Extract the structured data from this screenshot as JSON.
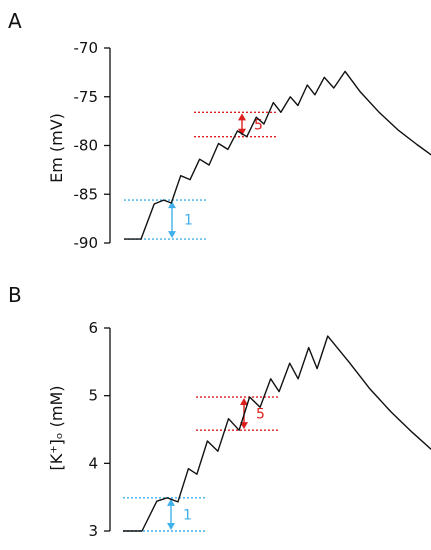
{
  "chart_data": [
    {
      "panel": "A",
      "type": "line",
      "ylabel": "Em (mV)",
      "xlabel": "",
      "ylim": [
        -90,
        -70
      ],
      "yticks": [
        -90,
        -85,
        -80,
        -75,
        -70
      ],
      "ytick_labels": [
        "-90",
        "-85",
        "-80",
        "-75",
        "-70"
      ],
      "grid": false,
      "series": [
        {
          "color": "#111111",
          "values": [
            [
              0,
              -89.6
            ],
            [
              0.9,
              -89.6
            ],
            [
              1.6,
              -86.0
            ],
            [
              2.1,
              -85.6
            ],
            [
              2.5,
              -85.9
            ],
            [
              3.0,
              -83.1
            ],
            [
              3.5,
              -83.5
            ],
            [
              4.0,
              -81.4
            ],
            [
              4.5,
              -82.0
            ],
            [
              5.0,
              -79.8
            ],
            [
              5.5,
              -80.4
            ],
            [
              6.0,
              -78.5
            ],
            [
              6.5,
              -79.1
            ],
            [
              7.0,
              -77.1
            ],
            [
              7.4,
              -77.8
            ],
            [
              7.9,
              -75.6
            ],
            [
              8.3,
              -76.6
            ],
            [
              8.8,
              -75.0
            ],
            [
              9.2,
              -75.9
            ],
            [
              9.7,
              -73.8
            ],
            [
              10.1,
              -74.8
            ],
            [
              10.6,
              -73.0
            ],
            [
              11.1,
              -74.1
            ],
            [
              11.7,
              -72.4
            ],
            [
              12.5,
              -74.5
            ],
            [
              13.5,
              -76.6
            ],
            [
              14.5,
              -78.4
            ],
            [
              15.5,
              -79.9
            ],
            [
              16.5,
              -81.3
            ]
          ]
        }
      ],
      "annotations": [
        {
          "label": "1",
          "color": "#3fb0ea",
          "y_low": -89.6,
          "y_high": -85.6
        },
        {
          "label": "5",
          "color": "#dd1f1f",
          "y_low": -79.1,
          "y_high": -76.6
        }
      ]
    },
    {
      "panel": "B",
      "type": "line",
      "ylabel": "[K⁺]ₒ (mM)",
      "xlabel": "",
      "ylim": [
        3,
        6
      ],
      "yticks": [
        3,
        4,
        5,
        6
      ],
      "ytick_labels": [
        "3",
        "4",
        "5",
        "6"
      ],
      "grid": false,
      "series": [
        {
          "color": "#111111",
          "values": [
            [
              0,
              3.0
            ],
            [
              0.9,
              3.0
            ],
            [
              1.6,
              3.44
            ],
            [
              2.1,
              3.49
            ],
            [
              2.6,
              3.43
            ],
            [
              3.1,
              3.92
            ],
            [
              3.5,
              3.84
            ],
            [
              4.0,
              4.33
            ],
            [
              4.5,
              4.18
            ],
            [
              5.0,
              4.66
            ],
            [
              5.5,
              4.49
            ],
            [
              6.0,
              4.98
            ],
            [
              6.5,
              4.83
            ],
            [
              7.0,
              5.25
            ],
            [
              7.4,
              5.06
            ],
            [
              7.9,
              5.48
            ],
            [
              8.3,
              5.25
            ],
            [
              8.8,
              5.71
            ],
            [
              9.2,
              5.4
            ],
            [
              9.7,
              5.88
            ],
            [
              10.7,
              5.5
            ],
            [
              11.7,
              5.1
            ],
            [
              12.7,
              4.76
            ],
            [
              13.7,
              4.46
            ],
            [
              14.7,
              4.18
            ],
            [
              15.5,
              4.01
            ]
          ]
        }
      ],
      "annotations": [
        {
          "label": "1",
          "color": "#3fb0ea",
          "y_low": 3.0,
          "y_high": 3.49
        },
        {
          "label": "5",
          "color": "#dd1f1f",
          "y_low": 4.49,
          "y_high": 4.98
        }
      ]
    }
  ]
}
